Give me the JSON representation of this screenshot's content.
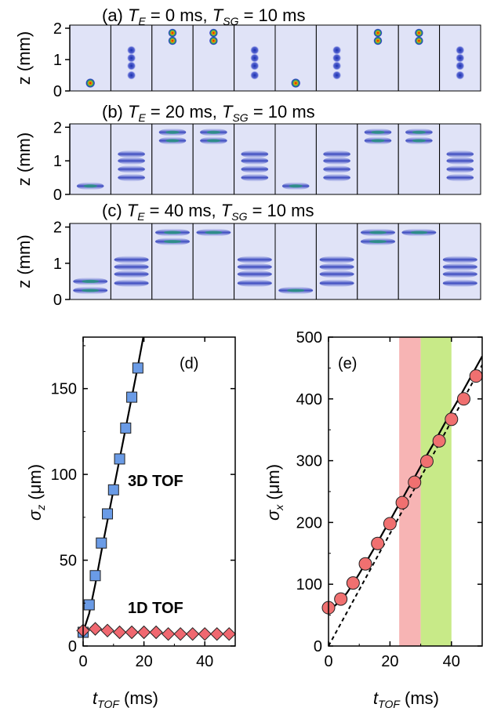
{
  "chart_data": [
    {
      "type": "heatmap",
      "panel": "(a)",
      "title_prefix": "(a) ",
      "title_te_var": "T",
      "title_te_sub": "E",
      "title_te_val": " = 0 ms, ",
      "title_tsg_var": "T",
      "title_tsg_sub": "SG",
      "title_tsg_val": " = 10 ms",
      "ylabel": "z (mm)",
      "ylim": [
        0,
        2.1
      ],
      "yticks": [
        "0",
        "1",
        "2"
      ],
      "frames": [
        {
          "peaks": [
            0.25
          ]
        },
        {
          "peaks": [
            0.5,
            0.8,
            1.05,
            1.3
          ]
        },
        {
          "peaks": [
            1.6,
            1.85
          ]
        },
        {
          "peaks": [
            1.6,
            1.85
          ]
        },
        {
          "peaks": [
            0.5,
            0.8,
            1.05,
            1.3
          ]
        },
        {
          "peaks": [
            0.25
          ]
        },
        {
          "peaks": [
            0.5,
            0.8,
            1.05,
            1.3
          ]
        },
        {
          "peaks": [
            1.6,
            1.85
          ]
        },
        {
          "peaks": [
            1.6,
            1.85
          ]
        },
        {
          "peaks": [
            0.5,
            0.8,
            1.05,
            1.3
          ]
        }
      ]
    },
    {
      "type": "heatmap",
      "panel": "(b)",
      "title_prefix": "(b) ",
      "title_te_var": "T",
      "title_te_sub": "E",
      "title_te_val": " = 20 ms, ",
      "title_tsg_var": "T",
      "title_tsg_sub": "SG",
      "title_tsg_val": " = 10 ms",
      "ylabel": "z (mm)",
      "ylim": [
        0,
        2.1
      ],
      "yticks": [
        "0",
        "1",
        "2"
      ],
      "frames": [
        {
          "peaks": [
            0.25
          ]
        },
        {
          "peaks": [
            0.5,
            0.75,
            1.0,
            1.2
          ]
        },
        {
          "peaks": [
            1.6,
            1.85
          ]
        },
        {
          "peaks": [
            1.6,
            1.85
          ]
        },
        {
          "peaks": [
            0.5,
            0.75,
            1.0,
            1.2
          ]
        },
        {
          "peaks": [
            0.25
          ]
        },
        {
          "peaks": [
            0.5,
            0.75,
            1.0,
            1.2
          ]
        },
        {
          "peaks": [
            1.6,
            1.85
          ]
        },
        {
          "peaks": [
            1.6,
            1.85
          ]
        },
        {
          "peaks": [
            0.5,
            0.75,
            1.0,
            1.2
          ]
        }
      ]
    },
    {
      "type": "heatmap",
      "panel": "(c)",
      "title_prefix": "(c) ",
      "title_te_var": "T",
      "title_te_sub": "E",
      "title_te_val": " = 40 ms, ",
      "title_tsg_var": "T",
      "title_tsg_sub": "SG",
      "title_tsg_val": " = 10 ms",
      "ylabel": "z (mm)",
      "ylim": [
        0,
        2.1
      ],
      "yticks": [
        "0",
        "1",
        "2"
      ],
      "frames": [
        {
          "peaks": [
            0.25,
            0.5
          ]
        },
        {
          "peaks": [
            0.45,
            0.7,
            0.9,
            1.1
          ]
        },
        {
          "peaks": [
            1.6,
            1.85
          ]
        },
        {
          "peaks": [
            1.85
          ]
        },
        {
          "peaks": [
            0.45,
            0.7,
            0.9,
            1.1
          ]
        },
        {
          "peaks": [
            0.25
          ]
        },
        {
          "peaks": [
            0.45,
            0.7,
            0.9,
            1.1
          ]
        },
        {
          "peaks": [
            1.6,
            1.85
          ]
        },
        {
          "peaks": [
            1.85
          ]
        },
        {
          "peaks": [
            0.45,
            0.7,
            0.9,
            1.1
          ]
        }
      ]
    },
    {
      "type": "scatter",
      "panel": "(d)",
      "xlabel_var": "t",
      "xlabel_sub": "TOF",
      "xlabel_unit": " (ms)",
      "ylabel_var": "σ",
      "ylabel_sub": "z",
      "ylabel_unit": " (μm)",
      "xlim": [
        0,
        50
      ],
      "ylim": [
        0,
        180
      ],
      "xticks": [
        0,
        20,
        40
      ],
      "yticks": [
        0,
        50,
        100,
        150
      ],
      "series": [
        {
          "name": "3D TOF",
          "color": "#6a9be6",
          "marker": "square",
          "x": [
            0,
            2,
            4,
            6,
            8,
            10,
            12,
            14,
            16,
            18
          ],
          "y": [
            8,
            24,
            41,
            60,
            77,
            91,
            109,
            127,
            145,
            162
          ]
        },
        {
          "name": "1D TOF",
          "color": "#f06870",
          "marker": "diamond",
          "x": [
            0,
            4,
            8,
            12,
            16,
            20,
            24,
            28,
            32,
            36,
            40,
            44,
            48
          ],
          "y": [
            9,
            10,
            9,
            8,
            8,
            8,
            8,
            7,
            7,
            7,
            7,
            7,
            7
          ]
        }
      ],
      "fit": {
        "x": [
          0,
          2,
          4,
          6,
          8,
          10,
          12,
          14,
          16,
          18,
          20
        ],
        "y": [
          8,
          19,
          36,
          55,
          73,
          91,
          109,
          127,
          145,
          163,
          182
        ]
      }
    },
    {
      "type": "scatter",
      "panel": "(e)",
      "xlabel_var": "t",
      "xlabel_sub": "TOF",
      "xlabel_unit": " (ms)",
      "ylabel_var": "σ",
      "ylabel_sub": "x",
      "ylabel_unit": " (μm)",
      "xlim": [
        0,
        50
      ],
      "ylim": [
        0,
        500
      ],
      "xticks": [
        0,
        20,
        40
      ],
      "yticks": [
        0,
        100,
        200,
        300,
        400,
        500
      ],
      "bands": [
        {
          "x0": 23,
          "x1": 30,
          "color": "#f7b4b4"
        },
        {
          "x0": 30,
          "x1": 40,
          "color": "#c8ea88"
        }
      ],
      "series": [
        {
          "color": "#f07070",
          "marker": "circle",
          "x": [
            0,
            4,
            8,
            12,
            16,
            20,
            24,
            28,
            32,
            36,
            40,
            44,
            48
          ],
          "y": [
            62,
            76,
            102,
            133,
            166,
            198,
            232,
            265,
            299,
            332,
            367,
            400,
            437
          ]
        }
      ],
      "fit": {
        "x": [
          0,
          2,
          4,
          6,
          8,
          10,
          12,
          14,
          16,
          18,
          20,
          22,
          24,
          26,
          28,
          30,
          32,
          34,
          36,
          38,
          40,
          42,
          44,
          46,
          48,
          50
        ],
        "y": [
          62,
          65,
          74,
          86,
          101,
          117,
          134,
          151,
          168,
          186,
          203,
          221,
          238,
          256,
          273,
          291,
          309,
          326,
          344,
          362,
          380,
          397,
          415,
          433,
          451,
          469
        ]
      },
      "asymptote": {
        "x": [
          0,
          50
        ],
        "y": [
          0,
          455
        ]
      }
    }
  ]
}
